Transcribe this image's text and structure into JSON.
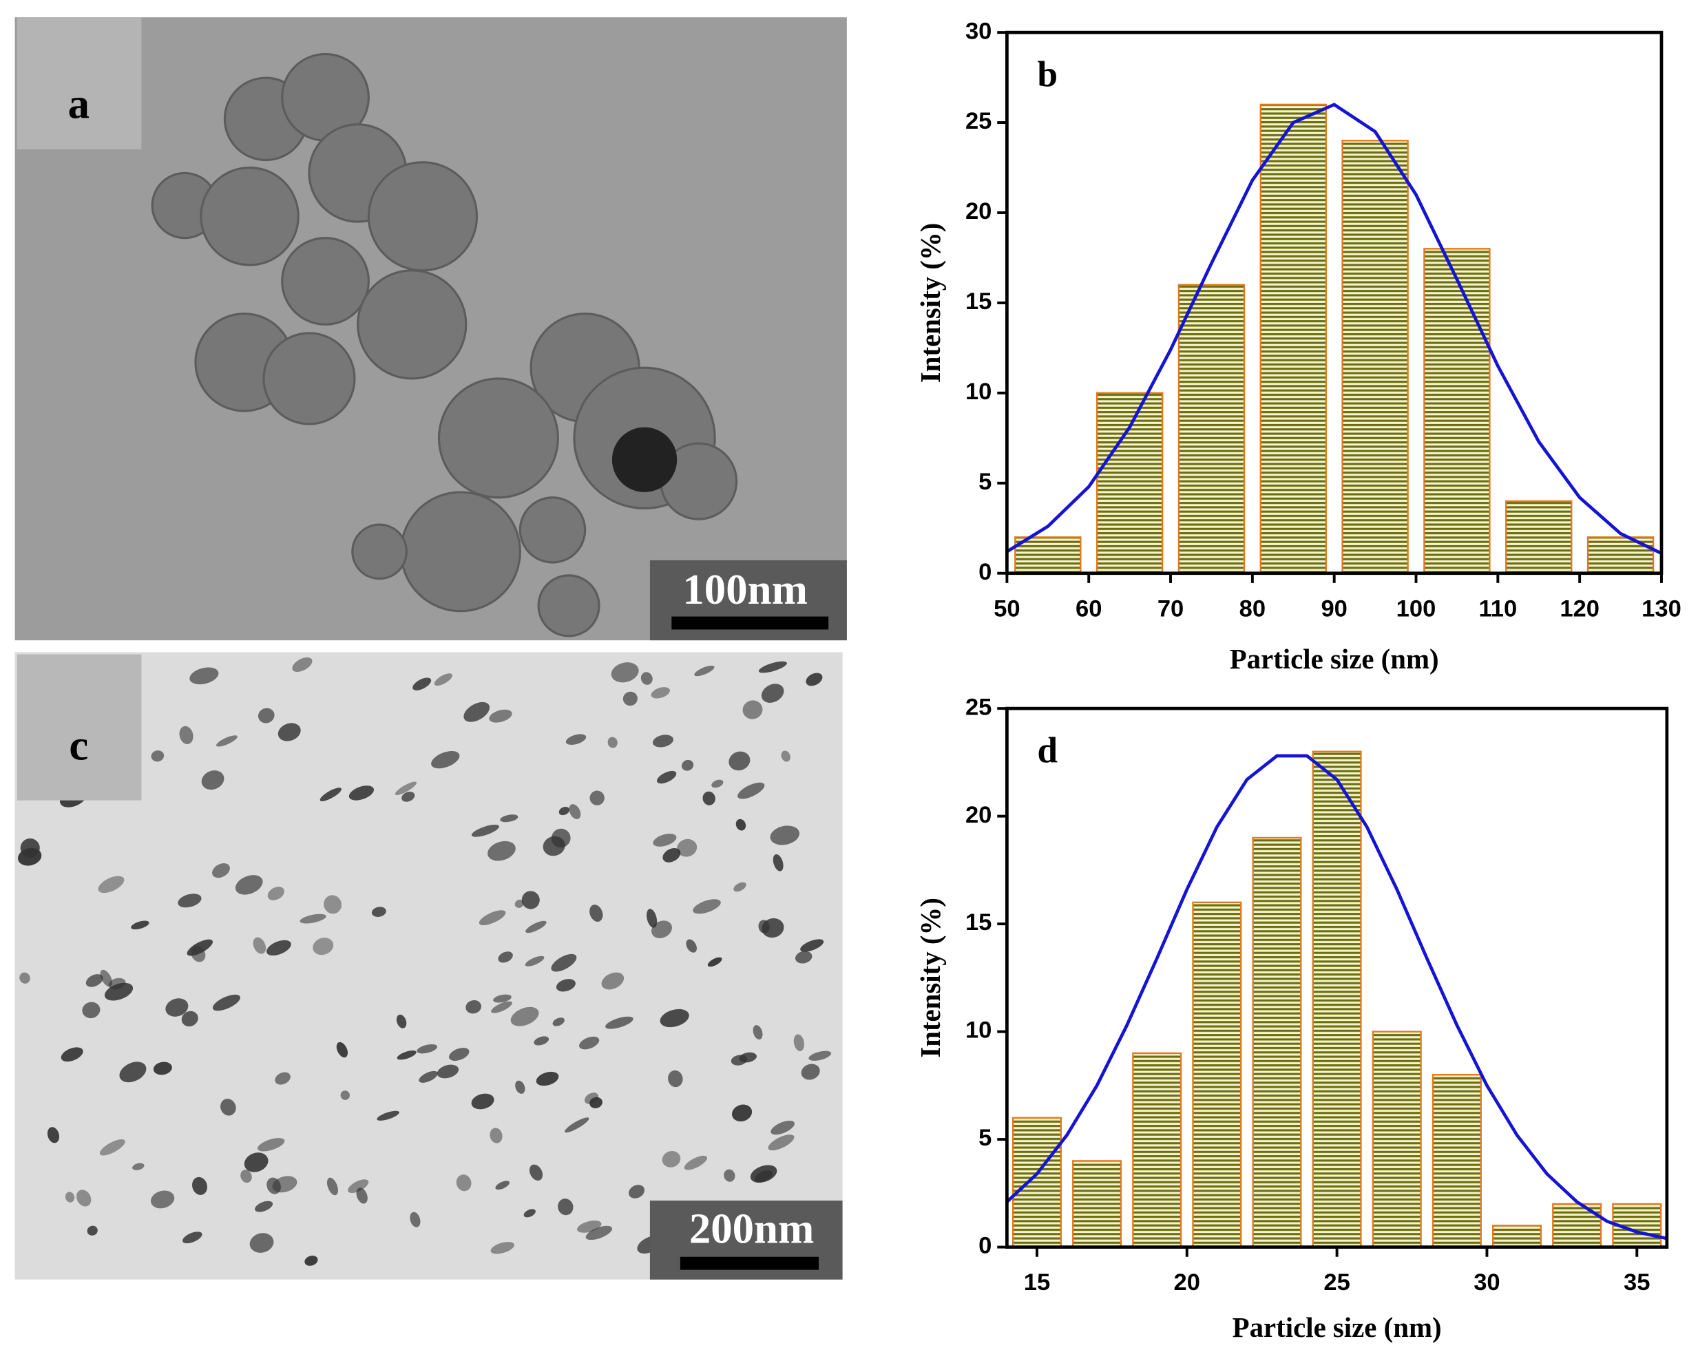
{
  "panels": {
    "a": {
      "label": "a",
      "scale_bar": "100nm"
    },
    "c": {
      "label": "c",
      "scale_bar": "200nm"
    }
  },
  "chart_data": [
    {
      "type": "histogram",
      "annotation": "b",
      "xlabel": "Particle size (nm)",
      "ylabel": "Intensity (%)",
      "bins": [
        50,
        60,
        70,
        80,
        90,
        100,
        110,
        120,
        130
      ],
      "values": [
        2,
        10,
        16,
        26,
        24,
        18,
        4,
        2
      ],
      "color": "#6e6e10",
      "edgecolor": "#e07a20",
      "xlim": [
        50,
        130
      ],
      "ylim": [
        0,
        30
      ],
      "xticks": [
        50,
        60,
        70,
        80,
        90,
        100,
        110,
        120,
        130
      ],
      "yticks": [
        0,
        5,
        10,
        15,
        20,
        25,
        30
      ],
      "fit": {
        "color": "#1414d2",
        "x": [
          50,
          55,
          60,
          65,
          70,
          75,
          80,
          85,
          90,
          95,
          100,
          105,
          110,
          115,
          120,
          125,
          130
        ],
        "y": [
          1.2,
          2.6,
          4.8,
          8.1,
          12.4,
          17.2,
          21.8,
          25.0,
          26.0,
          24.5,
          21.0,
          16.3,
          11.5,
          7.3,
          4.2,
          2.2,
          1.1
        ]
      }
    },
    {
      "type": "histogram",
      "annotation": "d",
      "xlabel": "Particle size (nm)",
      "ylabel": "Intensity (%)",
      "bins": [
        14,
        16,
        18,
        20,
        22,
        24,
        26,
        28,
        30,
        32,
        34,
        36
      ],
      "values": [
        6,
        4,
        9,
        16,
        19,
        23,
        10,
        8,
        1,
        2,
        2
      ],
      "color": "#6e6e10",
      "edgecolor": "#e07a20",
      "xlim": [
        14,
        36
      ],
      "ylim": [
        0,
        25
      ],
      "xticks": [
        15,
        20,
        25,
        30,
        35
      ],
      "yticks": [
        0,
        5,
        10,
        15,
        20,
        25
      ],
      "fit": {
        "color": "#1414d2",
        "x": [
          14,
          15,
          16,
          17,
          18,
          19,
          20,
          21,
          22,
          23,
          24,
          25,
          26,
          27,
          28,
          29,
          30,
          31,
          32,
          33,
          34,
          35,
          36
        ],
        "y": [
          2.1,
          3.4,
          5.2,
          7.5,
          10.3,
          13.4,
          16.6,
          19.5,
          21.7,
          22.8,
          22.8,
          21.7,
          19.5,
          16.6,
          13.4,
          10.3,
          7.5,
          5.2,
          3.4,
          2.1,
          1.2,
          0.7,
          0.4
        ]
      }
    }
  ]
}
